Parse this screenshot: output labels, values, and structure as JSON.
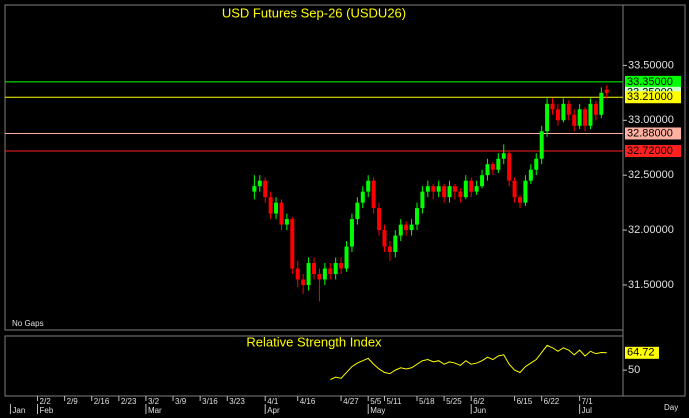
{
  "chart_data": {
    "type": "candlestick",
    "title": "USD Futures Sep-26 (USDU26)",
    "annotation": "No Gaps",
    "xlabel": "Day",
    "up_color": "#00ff00",
    "down_color": "#ff0000",
    "ylim": [
      31.09,
      34.05
    ],
    "yticks": [
      {
        "value": 31.5,
        "label": "31.50000"
      },
      {
        "value": 32,
        "label": "32.00000"
      },
      {
        "value": 32.5,
        "label": "32.50000"
      },
      {
        "value": 33,
        "label": "33.00000"
      },
      {
        "value": 33.5,
        "label": "33.50000"
      }
    ],
    "xlim": [
      -1,
      113
    ],
    "xticks": [
      {
        "value": 5,
        "label": "2/2"
      },
      {
        "value": 10,
        "label": "2/9"
      },
      {
        "value": 15,
        "label": "2/16"
      },
      {
        "value": 20,
        "label": "2/23"
      },
      {
        "value": 25,
        "label": "3/2"
      },
      {
        "value": 30,
        "label": "3/9"
      },
      {
        "value": 35,
        "label": "3/16"
      },
      {
        "value": 40,
        "label": "3/23"
      },
      {
        "value": 47,
        "label": "4/1"
      },
      {
        "value": 53,
        "label": "4/16"
      },
      {
        "value": 61,
        "label": "4/27"
      },
      {
        "value": 66,
        "label": "5/5"
      },
      {
        "value": 69,
        "label": "5/11"
      },
      {
        "value": 75,
        "label": "5/18"
      },
      {
        "value": 80,
        "label": "5/25"
      },
      {
        "value": 85,
        "label": "6/2"
      },
      {
        "value": 93,
        "label": "6/15"
      },
      {
        "value": 98,
        "label": "6/22"
      },
      {
        "value": 105,
        "label": "7/1"
      }
    ],
    "months": [
      {
        "value": 0,
        "label": "Jan"
      },
      {
        "value": 5,
        "label": "Feb"
      },
      {
        "value": 25,
        "label": "Mar"
      },
      {
        "value": 47,
        "label": "Apr"
      },
      {
        "value": 66,
        "label": "May"
      },
      {
        "value": 85,
        "label": "Jun"
      },
      {
        "value": 105,
        "label": "Jul"
      }
    ],
    "levels": [
      {
        "value": 33.35,
        "label": "33.35000",
        "color": "#00ff00",
        "line": true
      },
      {
        "value": 33.25,
        "label": "33.25000",
        "color": "#ccffcc",
        "line": false
      },
      {
        "value": 33.21,
        "label": "33.21000",
        "color": "#ffff00",
        "line": true
      },
      {
        "value": 32.88,
        "label": "32.88000",
        "color": "#ffb0a0",
        "line": true
      },
      {
        "value": 32.72,
        "label": "32.72000",
        "color": "#ff2020",
        "line": true
      }
    ],
    "x": [
      45,
      46,
      47,
      48,
      49,
      50,
      51,
      52,
      53,
      54,
      55,
      56,
      57,
      58,
      59,
      60,
      61,
      62,
      63,
      64,
      65,
      66,
      67,
      68,
      69,
      70,
      71,
      72,
      73,
      74,
      75,
      76,
      77,
      78,
      79,
      80,
      81,
      82,
      83,
      84,
      85,
      86,
      87,
      88,
      89,
      90,
      91,
      92,
      93,
      94,
      95,
      96,
      97,
      98,
      99,
      100,
      101,
      102,
      103,
      104,
      105,
      106,
      107,
      108,
      109,
      110
    ],
    "candles": [
      [
        32.35,
        32.5,
        32.28,
        32.4
      ],
      [
        32.4,
        32.5,
        32.35,
        32.45
      ],
      [
        32.45,
        32.48,
        32.25,
        32.3
      ],
      [
        32.3,
        32.35,
        32.1,
        32.15
      ],
      [
        32.15,
        32.3,
        32.1,
        32.25
      ],
      [
        32.25,
        32.28,
        32.0,
        32.05
      ],
      [
        32.05,
        32.15,
        32.0,
        32.1
      ],
      [
        32.1,
        32.12,
        31.6,
        31.65
      ],
      [
        31.65,
        31.72,
        31.48,
        31.55
      ],
      [
        31.55,
        31.6,
        31.42,
        31.5
      ],
      [
        31.5,
        31.75,
        31.45,
        31.7
      ],
      [
        31.7,
        31.75,
        31.55,
        31.6
      ],
      [
        31.6,
        31.65,
        31.35,
        31.55
      ],
      [
        31.55,
        31.7,
        31.5,
        31.65
      ],
      [
        31.65,
        31.7,
        31.55,
        31.6
      ],
      [
        31.6,
        31.75,
        31.55,
        31.7
      ],
      [
        31.7,
        31.75,
        31.6,
        31.65
      ],
      [
        31.65,
        31.9,
        31.62,
        31.85
      ],
      [
        31.85,
        32.15,
        31.8,
        32.1
      ],
      [
        32.1,
        32.3,
        32.05,
        32.25
      ],
      [
        32.25,
        32.4,
        32.2,
        32.35
      ],
      [
        32.35,
        32.5,
        32.3,
        32.45
      ],
      [
        32.45,
        32.48,
        32.15,
        32.2
      ],
      [
        32.2,
        32.25,
        31.95,
        32.0
      ],
      [
        32.0,
        32.05,
        31.8,
        31.85
      ],
      [
        31.85,
        31.9,
        31.72,
        31.8
      ],
      [
        31.8,
        32.0,
        31.75,
        31.95
      ],
      [
        31.95,
        32.1,
        31.9,
        32.05
      ],
      [
        32.05,
        32.08,
        31.95,
        32.0
      ],
      [
        32.0,
        32.1,
        31.95,
        32.05
      ],
      [
        32.05,
        32.25,
        32.0,
        32.2
      ],
      [
        32.2,
        32.4,
        32.15,
        32.35
      ],
      [
        32.35,
        32.45,
        32.3,
        32.4
      ],
      [
        32.4,
        32.42,
        32.28,
        32.35
      ],
      [
        32.35,
        32.45,
        32.3,
        32.4
      ],
      [
        32.4,
        32.42,
        32.25,
        32.3
      ],
      [
        32.3,
        32.45,
        32.25,
        32.4
      ],
      [
        32.4,
        32.42,
        32.28,
        32.35
      ],
      [
        32.35,
        32.38,
        32.25,
        32.3
      ],
      [
        32.3,
        32.5,
        32.28,
        32.45
      ],
      [
        32.45,
        32.48,
        32.3,
        32.35
      ],
      [
        32.35,
        32.45,
        32.32,
        32.4
      ],
      [
        32.4,
        32.55,
        32.38,
        32.5
      ],
      [
        32.5,
        32.65,
        32.45,
        32.6
      ],
      [
        32.6,
        32.62,
        32.5,
        32.55
      ],
      [
        32.55,
        32.7,
        32.52,
        32.65
      ],
      [
        32.65,
        32.78,
        32.6,
        32.7
      ],
      [
        32.7,
        32.72,
        32.4,
        32.45
      ],
      [
        32.45,
        32.48,
        32.25,
        32.3
      ],
      [
        32.3,
        32.32,
        32.2,
        32.25
      ],
      [
        32.25,
        32.5,
        32.22,
        32.45
      ],
      [
        32.45,
        32.6,
        32.42,
        32.55
      ],
      [
        32.55,
        32.7,
        32.5,
        32.65
      ],
      [
        32.65,
        32.95,
        32.6,
        32.9
      ],
      [
        32.9,
        33.2,
        32.85,
        33.15
      ],
      [
        33.15,
        33.2,
        33.05,
        33.1
      ],
      [
        33.1,
        33.15,
        32.95,
        33.0
      ],
      [
        33.0,
        33.2,
        32.98,
        33.15
      ],
      [
        33.15,
        33.18,
        33.0,
        33.05
      ],
      [
        33.05,
        33.1,
        32.9,
        32.95
      ],
      [
        32.95,
        33.15,
        32.92,
        33.1
      ],
      [
        33.1,
        33.12,
        32.9,
        32.95
      ],
      [
        32.95,
        33.2,
        32.92,
        33.15
      ],
      [
        33.15,
        33.18,
        33.0,
        33.05
      ],
      [
        33.05,
        33.3,
        33.02,
        33.25
      ],
      [
        33.28,
        33.32,
        33.2,
        33.25
      ]
    ],
    "indicator": {
      "title": "Relative Strength Index",
      "color": "#ffff00",
      "ylim": [
        28,
        79
      ],
      "yticks": [
        50
      ],
      "values": [
        null,
        null,
        null,
        null,
        null,
        null,
        null,
        null,
        null,
        null,
        null,
        null,
        null,
        null,
        42,
        44,
        43,
        48,
        53,
        56,
        58,
        60,
        55,
        51,
        48,
        47,
        50,
        52,
        51,
        52,
        55,
        58,
        59,
        57,
        58,
        55,
        57,
        56,
        54,
        58,
        55,
        56,
        58,
        61,
        59,
        62,
        63,
        55,
        50,
        48,
        53,
        56,
        59,
        65,
        71,
        69,
        66,
        69,
        67,
        63,
        67,
        62,
        66,
        64,
        65,
        64.72
      ]
    }
  }
}
